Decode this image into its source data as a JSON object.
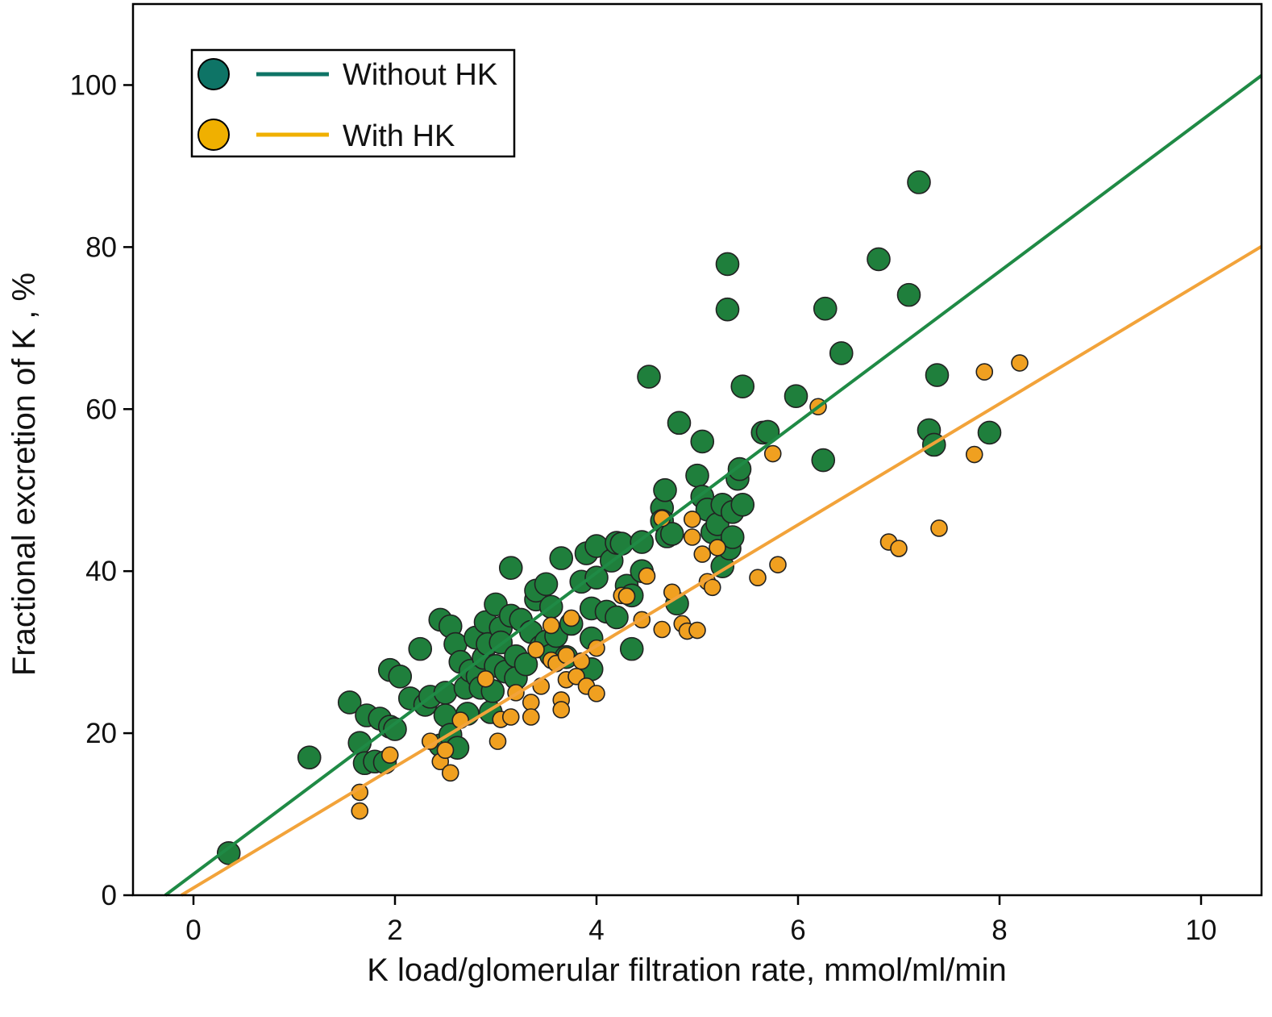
{
  "chart_data": {
    "type": "scatter",
    "title": "",
    "xlabel": "K load/glomerular filtration rate,  mmol/ml/min",
    "ylabel": "Fractional excretion of K , %",
    "xlim": [
      -0.6,
      10.6
    ],
    "ylim": [
      0,
      110
    ],
    "xticks": [
      0,
      2,
      4,
      6,
      8,
      10
    ],
    "yticks": [
      0,
      20,
      40,
      60,
      80,
      100
    ],
    "grid": false,
    "legend_position": "top-left",
    "series": [
      {
        "name": "Without HK",
        "color": "#1f7f3c",
        "line_color": "#1f8a45",
        "legend_color": "#0e7466",
        "fit_line": {
          "slope": 9.3,
          "intercept": 2.6
        },
        "points": [
          [
            0.35,
            5.2
          ],
          [
            1.15,
            17.0
          ],
          [
            1.55,
            23.8
          ],
          [
            1.65,
            18.8
          ],
          [
            1.7,
            16.3
          ],
          [
            1.72,
            22.2
          ],
          [
            1.8,
            16.5
          ],
          [
            1.85,
            21.8
          ],
          [
            1.9,
            16.4
          ],
          [
            1.95,
            27.8
          ],
          [
            1.95,
            20.8
          ],
          [
            2.0,
            20.5
          ],
          [
            2.05,
            27.0
          ],
          [
            2.15,
            24.3
          ],
          [
            2.25,
            30.4
          ],
          [
            2.3,
            23.5
          ],
          [
            2.35,
            24.5
          ],
          [
            2.45,
            34.0
          ],
          [
            2.45,
            18.5
          ],
          [
            2.5,
            25.0
          ],
          [
            2.5,
            22.2
          ],
          [
            2.55,
            33.2
          ],
          [
            2.55,
            19.8
          ],
          [
            2.6,
            31.0
          ],
          [
            2.62,
            18.2
          ],
          [
            2.65,
            28.8
          ],
          [
            2.7,
            25.6
          ],
          [
            2.72,
            22.4
          ],
          [
            2.75,
            27.7
          ],
          [
            2.8,
            31.8
          ],
          [
            2.82,
            27.0
          ],
          [
            2.85,
            25.6
          ],
          [
            2.88,
            29.3
          ],
          [
            2.9,
            33.7
          ],
          [
            2.92,
            31.0
          ],
          [
            2.95,
            22.6
          ],
          [
            2.97,
            25.2
          ],
          [
            3.0,
            35.9
          ],
          [
            3.0,
            28.3
          ],
          [
            3.05,
            33.0
          ],
          [
            3.05,
            31.2
          ],
          [
            3.1,
            27.6
          ],
          [
            3.15,
            34.5
          ],
          [
            3.15,
            40.4
          ],
          [
            3.2,
            29.5
          ],
          [
            3.2,
            26.8
          ],
          [
            3.25,
            34.0
          ],
          [
            3.3,
            28.5
          ],
          [
            3.35,
            32.5
          ],
          [
            3.4,
            36.5
          ],
          [
            3.4,
            37.6
          ],
          [
            3.45,
            30.7
          ],
          [
            3.5,
            38.4
          ],
          [
            3.5,
            31.3
          ],
          [
            3.55,
            29.6
          ],
          [
            3.55,
            35.6
          ],
          [
            3.6,
            32.0
          ],
          [
            3.65,
            41.6
          ],
          [
            3.7,
            29.4
          ],
          [
            3.75,
            33.5
          ],
          [
            3.85,
            38.7
          ],
          [
            3.9,
            42.2
          ],
          [
            3.95,
            27.9
          ],
          [
            3.95,
            31.7
          ],
          [
            3.95,
            35.4
          ],
          [
            4.0,
            39.2
          ],
          [
            4.0,
            43.1
          ],
          [
            4.1,
            35.0
          ],
          [
            4.15,
            41.3
          ],
          [
            4.2,
            43.5
          ],
          [
            4.2,
            34.3
          ],
          [
            4.25,
            43.4
          ],
          [
            4.3,
            38.2
          ],
          [
            4.35,
            37.0
          ],
          [
            4.35,
            30.4
          ],
          [
            4.45,
            43.6
          ],
          [
            4.45,
            40.0
          ],
          [
            4.52,
            64.0
          ],
          [
            4.65,
            47.8
          ],
          [
            4.65,
            46.2
          ],
          [
            4.68,
            50.0
          ],
          [
            4.7,
            44.3
          ],
          [
            4.75,
            44.6
          ],
          [
            4.8,
            36.0
          ],
          [
            4.82,
            58.3
          ],
          [
            5.0,
            51.8
          ],
          [
            5.05,
            56.0
          ],
          [
            5.05,
            49.2
          ],
          [
            5.1,
            47.6
          ],
          [
            5.15,
            44.8
          ],
          [
            5.2,
            45.8
          ],
          [
            5.25,
            48.2
          ],
          [
            5.25,
            40.6
          ],
          [
            5.3,
            77.9
          ],
          [
            5.3,
            72.3
          ],
          [
            5.32,
            42.8
          ],
          [
            5.35,
            47.3
          ],
          [
            5.35,
            44.2
          ],
          [
            5.4,
            51.4
          ],
          [
            5.42,
            52.6
          ],
          [
            5.45,
            62.8
          ],
          [
            5.45,
            48.2
          ],
          [
            5.65,
            57.1
          ],
          [
            5.7,
            57.2
          ],
          [
            5.98,
            61.6
          ],
          [
            6.25,
            53.7
          ],
          [
            6.27,
            72.4
          ],
          [
            6.43,
            66.9
          ],
          [
            6.8,
            78.5
          ],
          [
            7.1,
            74.1
          ],
          [
            7.2,
            88.0
          ],
          [
            7.3,
            57.4
          ],
          [
            7.35,
            55.6
          ],
          [
            7.38,
            64.2
          ],
          [
            7.9,
            57.1
          ]
        ]
      },
      {
        "name": "With HK",
        "color": "#f0a020",
        "line_color": "#f2a33a",
        "legend_color": "#f0b000",
        "fit_line": {
          "slope": 7.47,
          "intercept": 0.9
        },
        "points": [
          [
            1.65,
            12.7
          ],
          [
            1.65,
            10.4
          ],
          [
            1.95,
            17.3
          ],
          [
            2.35,
            19.0
          ],
          [
            2.45,
            16.5
          ],
          [
            2.5,
            17.9
          ],
          [
            2.55,
            15.1
          ],
          [
            2.65,
            21.6
          ],
          [
            2.9,
            26.7
          ],
          [
            3.02,
            19.0
          ],
          [
            3.05,
            21.7
          ],
          [
            3.15,
            22.0
          ],
          [
            3.2,
            25.0
          ],
          [
            3.35,
            23.8
          ],
          [
            3.35,
            22.0
          ],
          [
            3.4,
            30.3
          ],
          [
            3.45,
            25.8
          ],
          [
            3.55,
            29.0
          ],
          [
            3.55,
            33.3
          ],
          [
            3.6,
            28.6
          ],
          [
            3.65,
            24.1
          ],
          [
            3.65,
            22.9
          ],
          [
            3.7,
            29.6
          ],
          [
            3.7,
            26.6
          ],
          [
            3.75,
            34.2
          ],
          [
            3.8,
            27.0
          ],
          [
            3.85,
            28.9
          ],
          [
            3.9,
            25.8
          ],
          [
            4.0,
            24.9
          ],
          [
            4.0,
            30.5
          ],
          [
            4.25,
            37.0
          ],
          [
            4.3,
            36.9
          ],
          [
            4.45,
            34.0
          ],
          [
            4.5,
            39.4
          ],
          [
            4.65,
            32.8
          ],
          [
            4.65,
            46.5
          ],
          [
            4.75,
            37.4
          ],
          [
            4.85,
            33.5
          ],
          [
            4.9,
            32.6
          ],
          [
            4.95,
            44.2
          ],
          [
            4.95,
            46.4
          ],
          [
            5.0,
            32.7
          ],
          [
            5.05,
            42.1
          ],
          [
            5.1,
            38.7
          ],
          [
            5.15,
            38.0
          ],
          [
            5.2,
            42.9
          ],
          [
            5.6,
            39.2
          ],
          [
            5.75,
            54.5
          ],
          [
            5.8,
            40.8
          ],
          [
            6.2,
            60.3
          ],
          [
            6.9,
            43.6
          ],
          [
            7.0,
            42.8
          ],
          [
            7.4,
            45.3
          ],
          [
            7.75,
            54.4
          ],
          [
            7.85,
            64.6
          ],
          [
            8.2,
            65.7
          ]
        ]
      }
    ]
  }
}
